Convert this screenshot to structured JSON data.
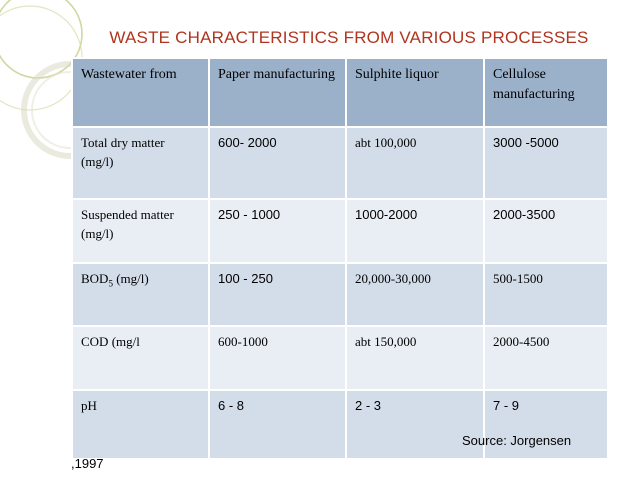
{
  "title": "WASTE CHARACTERISTICS FROM VARIOUS PROCESSES",
  "colors": {
    "title": "#b0341e",
    "header_fill": "#9bb1c9",
    "row_dark": "#d3dde9",
    "row_light": "#e9eef4",
    "decoration": "#c8d08f"
  },
  "table": {
    "headers": [
      "Wastewater from",
      "Paper manufacturing",
      "Sulphite liquor",
      "Cellulose manufacturing"
    ],
    "rows": [
      {
        "label": "Total dry matter (mg/l)",
        "values": [
          "600- 2000",
          "abt 100,000",
          "3000 -5000"
        ]
      },
      {
        "label": "Suspended matter (mg/l)",
        "values": [
          "250 - 1000",
          "1000-2000",
          "2000-3500"
        ]
      },
      {
        "label_main": "BOD",
        "label_sub": "5",
        "label_rest": " (mg/l)",
        "values": [
          "100 - 250",
          "20,000-30,000",
          "500-1500"
        ]
      },
      {
        "label": "COD (mg/l",
        "values": [
          "600-1000",
          "abt 150,000",
          "2000-4500"
        ]
      },
      {
        "label": "pH",
        "values": [
          "6 - 8",
          "2 - 3",
          "7 - 9"
        ]
      }
    ]
  },
  "source": "Source: Jorgensen",
  "source_year": ",1997"
}
